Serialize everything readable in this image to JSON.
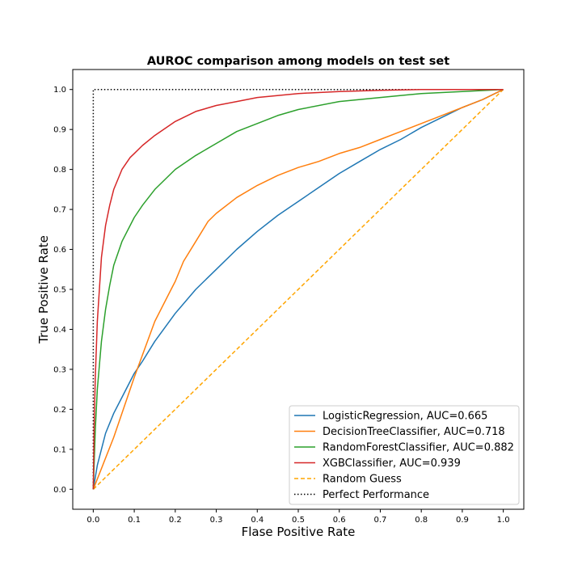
{
  "chart_data": {
    "type": "line",
    "title": "AUROC comparison among models on test set",
    "xlabel": "Flase Positive Rate",
    "ylabel": "True Positive Rate",
    "xlim": [
      -0.05,
      1.05
    ],
    "ylim": [
      -0.05,
      1.05
    ],
    "xticks": [
      "0.0",
      "0.1",
      "0.2",
      "0.3",
      "0.4",
      "0.5",
      "0.6",
      "0.7",
      "0.8",
      "0.9",
      "1.0"
    ],
    "yticks": [
      "0.0",
      "0.1",
      "0.2",
      "0.3",
      "0.4",
      "0.5",
      "0.6",
      "0.7",
      "0.8",
      "0.9",
      "1.0"
    ],
    "grid": false,
    "legend_position": "lower-right",
    "series": [
      {
        "name": "LogisticRegression, AUC=0.665",
        "color": "#1f77b4",
        "style": "solid",
        "x": [
          0,
          0.01,
          0.02,
          0.03,
          0.05,
          0.07,
          0.1,
          0.12,
          0.15,
          0.2,
          0.25,
          0.3,
          0.35,
          0.4,
          0.45,
          0.5,
          0.55,
          0.6,
          0.65,
          0.7,
          0.75,
          0.8,
          0.85,
          0.9,
          0.95,
          1.0
        ],
        "y": [
          0,
          0.06,
          0.1,
          0.14,
          0.19,
          0.23,
          0.29,
          0.32,
          0.37,
          0.44,
          0.5,
          0.55,
          0.6,
          0.645,
          0.685,
          0.72,
          0.755,
          0.79,
          0.82,
          0.85,
          0.875,
          0.905,
          0.93,
          0.955,
          0.975,
          1.0
        ]
      },
      {
        "name": "DecisionTreeClassifier, AUC=0.718",
        "color": "#ff7f0e",
        "style": "solid",
        "x": [
          0,
          0.05,
          0.1,
          0.15,
          0.19,
          0.2,
          0.22,
          0.25,
          0.28,
          0.3,
          0.35,
          0.4,
          0.45,
          0.5,
          0.55,
          0.6,
          0.65,
          0.7,
          0.75,
          0.8,
          0.85,
          0.9,
          0.95,
          1.0
        ],
        "y": [
          0,
          0.13,
          0.28,
          0.42,
          0.5,
          0.52,
          0.57,
          0.62,
          0.67,
          0.69,
          0.73,
          0.76,
          0.785,
          0.805,
          0.82,
          0.84,
          0.855,
          0.875,
          0.895,
          0.915,
          0.935,
          0.955,
          0.975,
          1.0
        ]
      },
      {
        "name": "RandomForestClassifier, AUC=0.882",
        "color": "#2ca02c",
        "style": "solid",
        "x": [
          0,
          0.005,
          0.01,
          0.02,
          0.03,
          0.04,
          0.05,
          0.07,
          0.1,
          0.12,
          0.15,
          0.2,
          0.25,
          0.3,
          0.35,
          0.4,
          0.45,
          0.5,
          0.6,
          0.7,
          0.8,
          0.9,
          1.0
        ],
        "y": [
          0,
          0.15,
          0.25,
          0.37,
          0.45,
          0.51,
          0.56,
          0.62,
          0.68,
          0.71,
          0.75,
          0.8,
          0.835,
          0.865,
          0.895,
          0.915,
          0.935,
          0.95,
          0.97,
          0.98,
          0.99,
          0.995,
          1.0
        ]
      },
      {
        "name": "XGBClassifier, AUC=0.939",
        "color": "#d62728",
        "style": "solid",
        "x": [
          0,
          0.002,
          0.005,
          0.01,
          0.02,
          0.03,
          0.04,
          0.05,
          0.07,
          0.09,
          0.1,
          0.12,
          0.15,
          0.2,
          0.25,
          0.3,
          0.35,
          0.4,
          0.5,
          0.6,
          0.7,
          0.8,
          0.9,
          1.0
        ],
        "y": [
          0,
          0.15,
          0.28,
          0.42,
          0.58,
          0.66,
          0.71,
          0.75,
          0.8,
          0.83,
          0.84,
          0.86,
          0.885,
          0.92,
          0.945,
          0.96,
          0.97,
          0.98,
          0.99,
          0.995,
          0.998,
          1.0,
          1.0,
          1.0
        ]
      },
      {
        "name": "Random Guess",
        "color": "#ffa500",
        "style": "dashed",
        "x": [
          0,
          1
        ],
        "y": [
          0,
          1
        ]
      },
      {
        "name": "Perfect Performance",
        "color": "#000000",
        "style": "dotted",
        "x": [
          0,
          0,
          1
        ],
        "y": [
          0,
          1,
          1
        ]
      }
    ]
  }
}
